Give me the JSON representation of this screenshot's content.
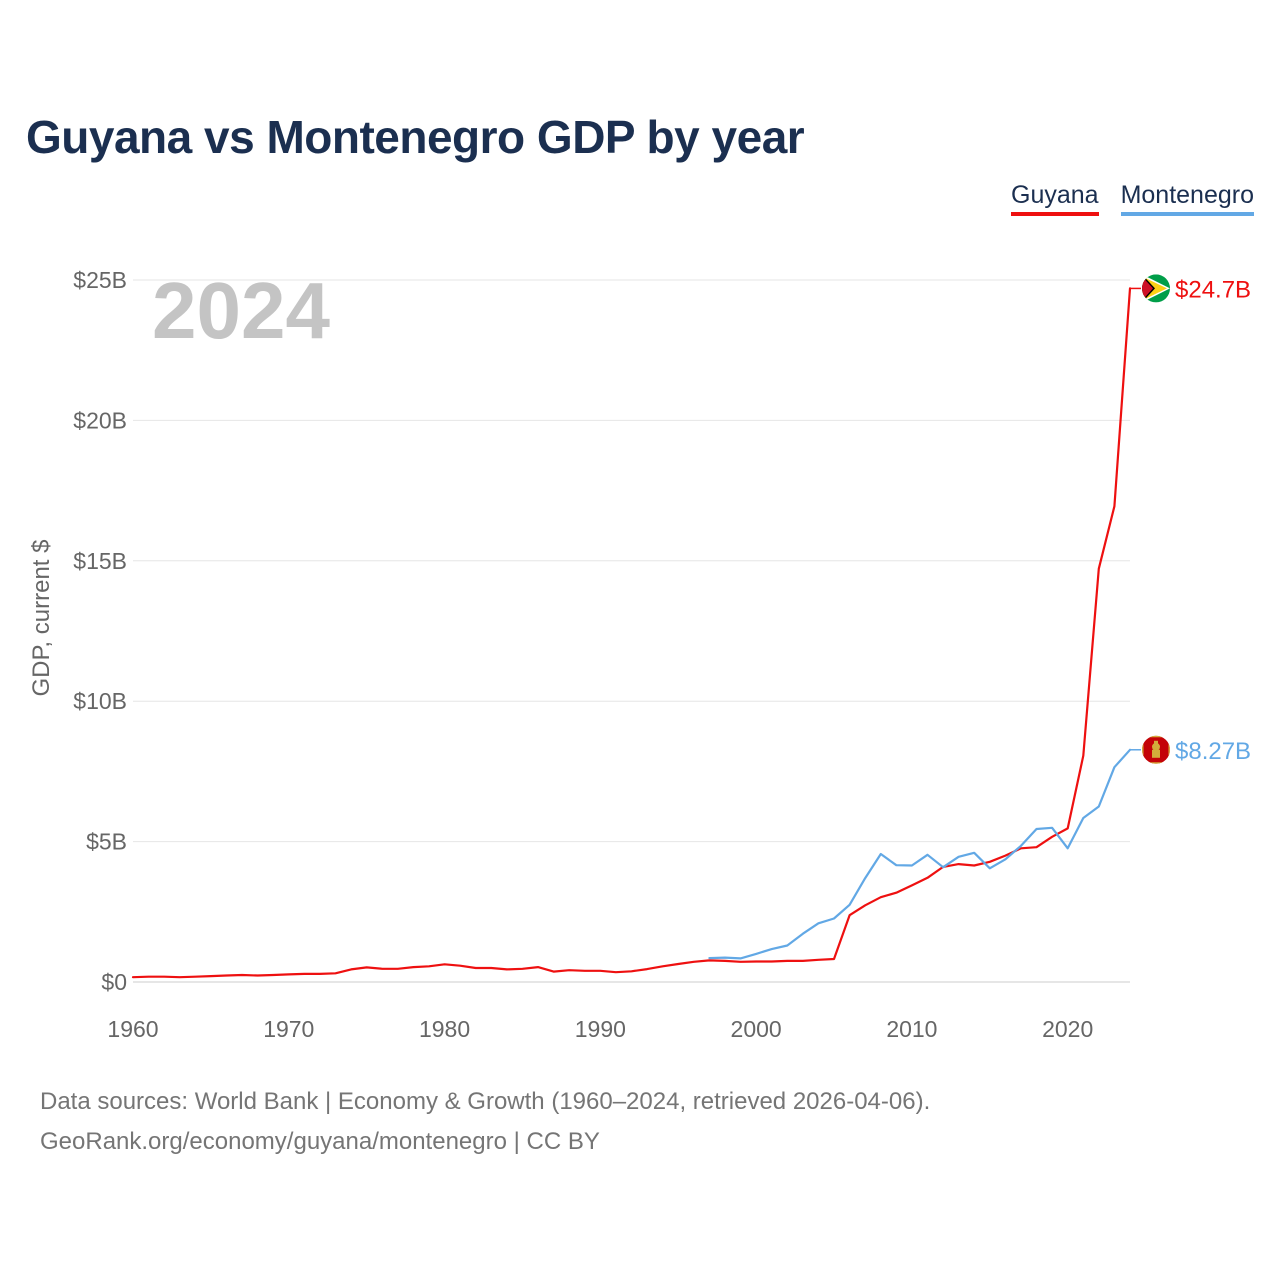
{
  "title": "Guyana vs Montenegro GDP by year",
  "legend": {
    "guyana": "Guyana",
    "montenegro": "Montenegro"
  },
  "year_display": "2024",
  "footer": {
    "line1": "Data sources: World Bank | Economy & Growth (1960–2024, retrieved 2026-04-06).",
    "line2": "GeoRank.org/economy/guyana/montenegro | CC BY"
  },
  "colors": {
    "guyana": "#ee1010",
    "montenegro": "#62a8e5",
    "title": "#1b2f50",
    "grid": "#e6e6e6",
    "tick_text": "#666666"
  },
  "chart_data": {
    "type": "line",
    "title": "Guyana vs Montenegro GDP by year",
    "xlabel": "",
    "ylabel": "GDP, current $",
    "xlim": [
      1960,
      2024
    ],
    "ylim": [
      0,
      25
    ],
    "y_unit": "billion USD",
    "x_ticks": [
      1960,
      1970,
      1980,
      1990,
      2000,
      2010,
      2020
    ],
    "x_tick_labels": [
      "1960",
      "1970",
      "1980",
      "1990",
      "2000",
      "2010",
      "2020"
    ],
    "y_ticks": [
      0,
      5,
      10,
      15,
      20,
      25
    ],
    "y_tick_labels": [
      "$0",
      "$5B",
      "$10B",
      "$15B",
      "$20B",
      "$25B"
    ],
    "grid": true,
    "legend_position": "top-right",
    "series": [
      {
        "name": "Guyana",
        "color": "#ee1010",
        "end_label": "$24.7B",
        "x": [
          1960,
          1961,
          1962,
          1963,
          1964,
          1965,
          1966,
          1967,
          1968,
          1969,
          1970,
          1971,
          1972,
          1973,
          1974,
          1975,
          1976,
          1977,
          1978,
          1979,
          1980,
          1981,
          1982,
          1983,
          1984,
          1985,
          1986,
          1987,
          1988,
          1989,
          1990,
          1991,
          1992,
          1993,
          1994,
          1995,
          1996,
          1997,
          1998,
          1999,
          2000,
          2001,
          2002,
          2003,
          2004,
          2005,
          2006,
          2007,
          2008,
          2009,
          2010,
          2011,
          2012,
          2013,
          2014,
          2015,
          2016,
          2017,
          2018,
          2019,
          2020,
          2021,
          2022,
          2023,
          2024
        ],
        "values": [
          0.17,
          0.19,
          0.19,
          0.17,
          0.19,
          0.21,
          0.23,
          0.25,
          0.23,
          0.25,
          0.27,
          0.29,
          0.29,
          0.31,
          0.45,
          0.52,
          0.47,
          0.47,
          0.53,
          0.56,
          0.63,
          0.58,
          0.5,
          0.5,
          0.45,
          0.47,
          0.53,
          0.37,
          0.42,
          0.4,
          0.4,
          0.35,
          0.38,
          0.46,
          0.56,
          0.64,
          0.72,
          0.77,
          0.75,
          0.72,
          0.73,
          0.73,
          0.75,
          0.75,
          0.79,
          0.82,
          2.38,
          2.73,
          3.02,
          3.18,
          3.44,
          3.71,
          4.1,
          4.2,
          4.15,
          4.28,
          4.5,
          4.76,
          4.8,
          5.17,
          5.47,
          8.06,
          14.72,
          16.94,
          24.7
        ]
      },
      {
        "name": "Montenegro",
        "color": "#62a8e5",
        "end_label": "$8.27B",
        "x": [
          1997,
          1998,
          1999,
          2000,
          2001,
          2002,
          2003,
          2004,
          2005,
          2006,
          2007,
          2008,
          2009,
          2010,
          2011,
          2012,
          2013,
          2014,
          2015,
          2016,
          2017,
          2018,
          2019,
          2020,
          2021,
          2022,
          2023,
          2024
        ],
        "values": [
          0.85,
          0.87,
          0.84,
          1.0,
          1.17,
          1.3,
          1.72,
          2.09,
          2.26,
          2.75,
          3.7,
          4.56,
          4.16,
          4.15,
          4.53,
          4.09,
          4.46,
          4.6,
          4.05,
          4.37,
          4.85,
          5.45,
          5.49,
          4.76,
          5.84,
          6.25,
          7.65,
          8.27
        ]
      }
    ]
  }
}
